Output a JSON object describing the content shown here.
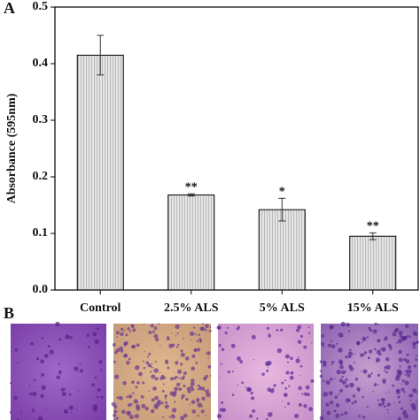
{
  "panel_labels": {
    "a": "A",
    "b": "B"
  },
  "chart_data": {
    "type": "bar",
    "ylabel": "Absorbance (595nm)",
    "categories": [
      "Control",
      "2.5% ALS",
      "5% ALS",
      "15% ALS"
    ],
    "values": [
      0.415,
      0.168,
      0.142,
      0.095
    ],
    "errors": [
      0.035,
      0.002,
      0.02,
      0.006
    ],
    "significance": [
      null,
      "**",
      "*",
      "**"
    ],
    "color": "#e4e4e4",
    "ylim": [
      0,
      0.5
    ],
    "yticks": [
      {
        "value": 0,
        "label": "0.0"
      },
      0.1,
      0.2,
      0.3,
      0.4,
      0.5
    ]
  }
}
